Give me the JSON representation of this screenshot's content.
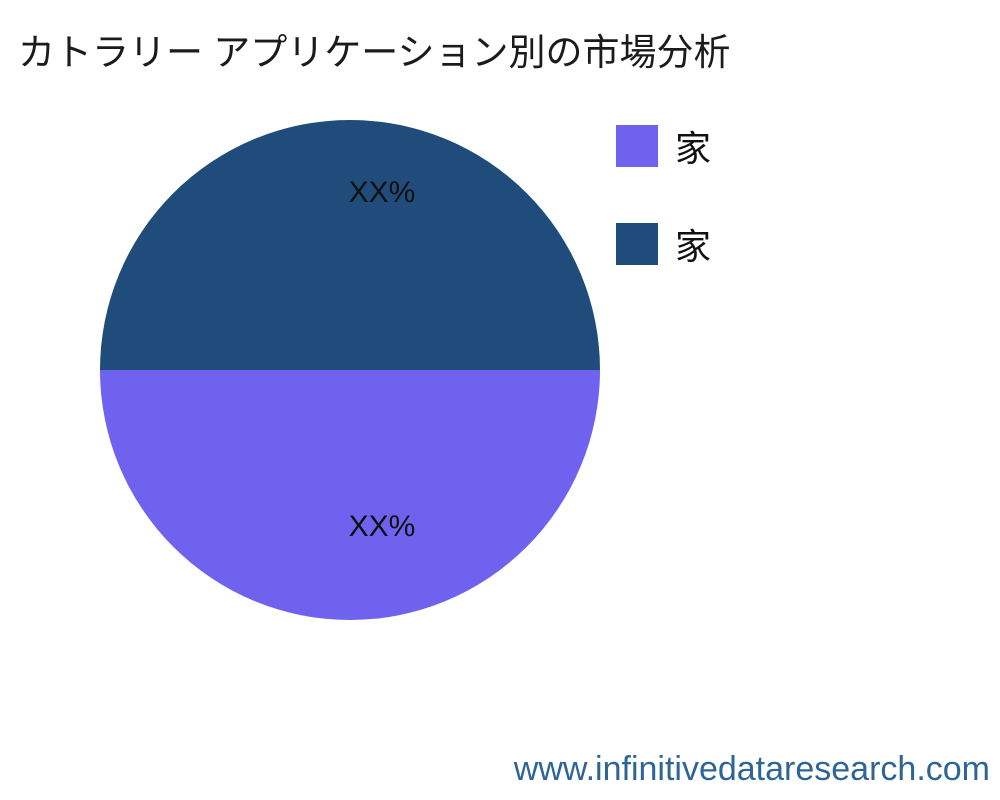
{
  "page": {
    "title": "カトラリー アプリケーション別の市場分析",
    "watermark": "www.infinitivedataresearch.com"
  },
  "colors": {
    "slice_top_navy": "#1f4c7b",
    "slice_bottom_purple": "#6e62ee",
    "title_text": "#1b1b1b",
    "watermark_blue": "#2e6597"
  },
  "chart_data": {
    "type": "pie",
    "title": "カトラリー アプリケーション別の市場分析",
    "legend_position": "right",
    "slices": [
      {
        "label": "家",
        "value": 50,
        "display_value": "XX%",
        "color": "#6e62ee",
        "position": "bottom-half"
      },
      {
        "label": "家",
        "value": 50,
        "display_value": "XX%",
        "color": "#1f4c7b",
        "position": "top-half"
      }
    ],
    "notes": "placeholder percentages shown as XX%"
  },
  "pie_labels": {
    "top": "XX%",
    "bottom": "XX%"
  },
  "legend": {
    "items": [
      {
        "label": "家",
        "color": "#6e62ee"
      },
      {
        "label": "家",
        "color": "#1f4c7b"
      }
    ]
  }
}
